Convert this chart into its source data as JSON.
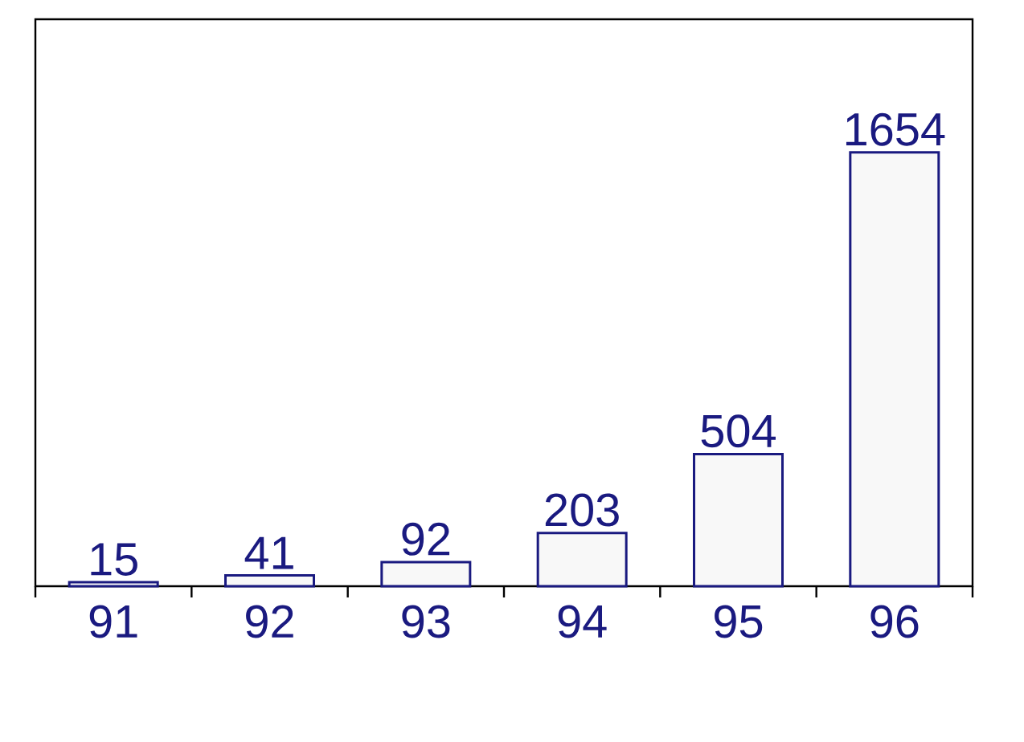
{
  "chart_data": {
    "type": "bar",
    "categories": [
      "91",
      "92",
      "93",
      "94",
      "95",
      "96"
    ],
    "values": [
      15,
      41,
      92,
      203,
      504,
      1654
    ],
    "color": "#f8f8f8",
    "data_labels": true
  }
}
